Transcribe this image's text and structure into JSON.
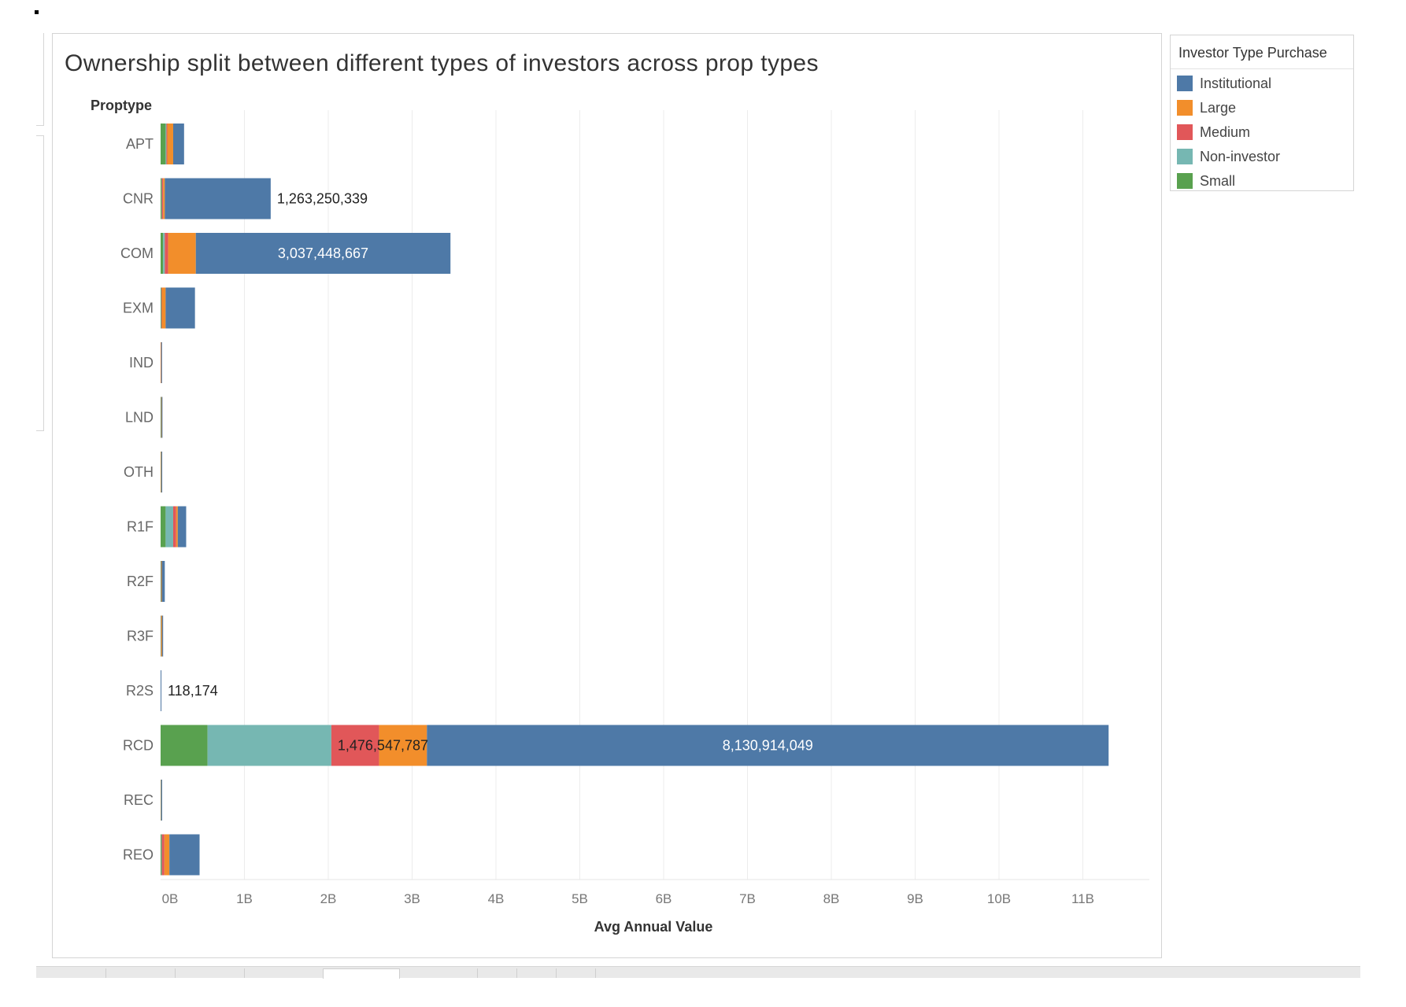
{
  "colors": {
    "Institutional": "#4e79a7",
    "Large": "#f28e2b",
    "Medium": "#e15759",
    "Non-investor": "#76b7b2",
    "Small": "#59a14f"
  },
  "chart_data": {
    "type": "bar",
    "orientation": "horizontal",
    "stacked": true,
    "title": "Ownership split between different types of investors across prop types",
    "ylabel": "Proptype",
    "xlabel": "Avg Annual Value",
    "xlim": [
      0,
      12000000000
    ],
    "xticks": [
      {
        "value": 0,
        "label": "0B"
      },
      {
        "value": 1000000000,
        "label": "1B"
      },
      {
        "value": 2000000000,
        "label": "2B"
      },
      {
        "value": 3000000000,
        "label": "3B"
      },
      {
        "value": 4000000000,
        "label": "4B"
      },
      {
        "value": 5000000000,
        "label": "5B"
      },
      {
        "value": 6000000000,
        "label": "6B"
      },
      {
        "value": 7000000000,
        "label": "7B"
      },
      {
        "value": 8000000000,
        "label": "8B"
      },
      {
        "value": 9000000000,
        "label": "9B"
      },
      {
        "value": 10000000000,
        "label": "10B"
      },
      {
        "value": 11000000000,
        "label": "11B"
      }
    ],
    "grid": "vertical",
    "legend": {
      "title": "Investor Type Purchase",
      "position": "right"
    },
    "categories": [
      "APT",
      "CNR",
      "COM",
      "EXM",
      "IND",
      "LND",
      "OTH",
      "R1F",
      "R2F",
      "R3F",
      "R2S",
      "RCD",
      "REC",
      "REO"
    ],
    "stack_order": [
      "Small",
      "Non-investor",
      "Medium",
      "Large",
      "Institutional"
    ],
    "series": [
      {
        "name": "Institutional",
        "values": [
          130000000,
          1263250339,
          3037448667,
          350000000,
          3000000,
          8000000,
          2000000,
          100000000,
          35000000,
          12000000,
          2000,
          8130914049,
          3000000,
          360000000
        ]
      },
      {
        "name": "Large",
        "values": [
          70000000,
          20000000,
          330000000,
          45000000,
          5000000,
          4000000,
          5000000,
          20000000,
          5000000,
          10000000,
          1000,
          570000000,
          2000000,
          60000000
        ]
      },
      {
        "name": "Medium",
        "values": [
          10000000,
          15000000,
          40000000,
          5000000,
          1000000,
          2000000,
          1000000,
          35000000,
          3000000,
          2000000,
          500,
          570000000,
          1000000,
          30000000
        ]
      },
      {
        "name": "Non-investor",
        "values": [
          10000000,
          5000000,
          20000000,
          5000000,
          1000000,
          2000000,
          2000000,
          90000000,
          2000000,
          3000000,
          118174,
          1476547787,
          5000000,
          5000000
        ]
      },
      {
        "name": "Small",
        "values": [
          60000000,
          10000000,
          30000000,
          5000000,
          1000000,
          5000000,
          2000000,
          60000000,
          5000000,
          3000000,
          500,
          560000000,
          1000000,
          10000000
        ]
      }
    ],
    "data_labels": [
      {
        "category": "CNR",
        "series": "Institutional",
        "text": "1,263,250,339"
      },
      {
        "category": "COM",
        "series": "Institutional",
        "text": "3,037,448,667"
      },
      {
        "category": "R2S",
        "series": "Non-investor",
        "text": "118,174"
      },
      {
        "category": "RCD",
        "series": "Non-investor",
        "text": "1,476,547,787"
      },
      {
        "category": "RCD",
        "series": "Institutional",
        "text": "8,130,914,049"
      }
    ]
  }
}
